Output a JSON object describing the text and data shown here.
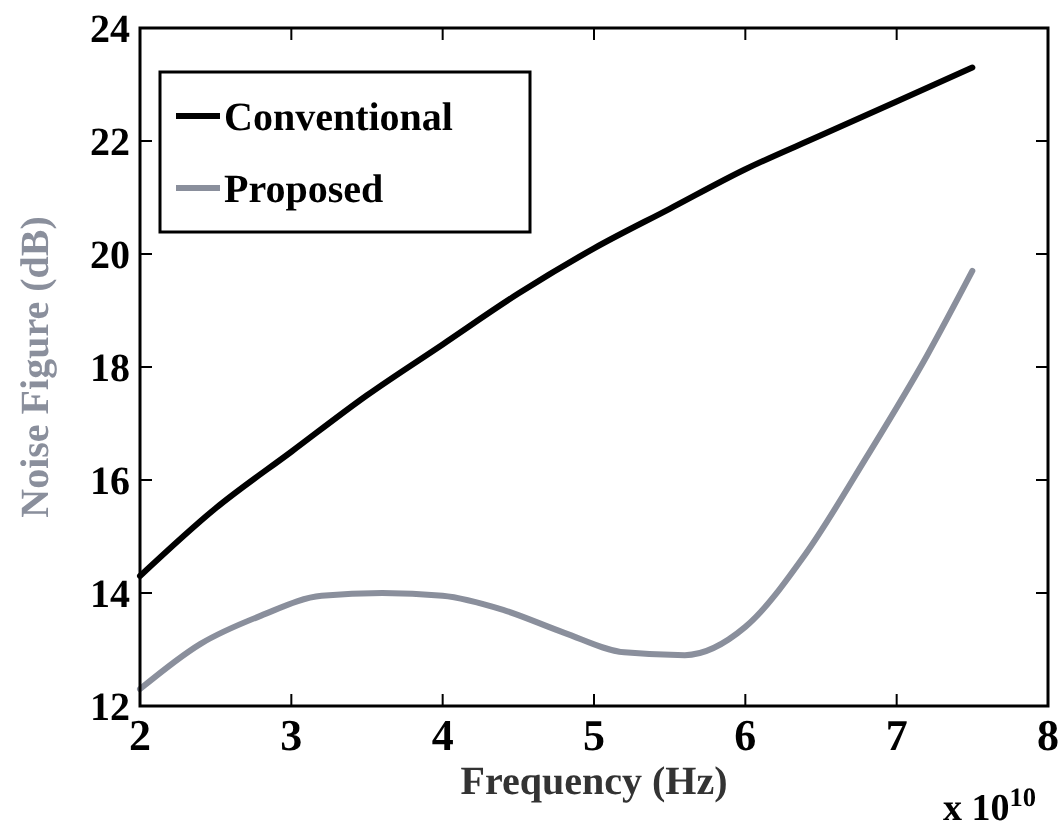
{
  "chart_data": {
    "type": "line",
    "xlabel": "Frequency (Hz)",
    "ylabel": "Noise Figure (dB)",
    "annotations": [
      "x 10$^{10}$"
    ],
    "xlim": [
      2,
      8
    ],
    "xticks": [
      2,
      3,
      4,
      5,
      6,
      7,
      8
    ],
    "ylim": [
      12,
      24
    ],
    "yticks": [
      12,
      14,
      16,
      18,
      20,
      22,
      24
    ],
    "grid": false,
    "legend": "top left",
    "marker": "none",
    "line_style": "solid",
    "series": [
      {
        "name": "Conventional",
        "color": "#000000",
        "x": [
          2,
          2.5,
          3,
          3.5,
          4,
          4.5,
          5,
          5.5,
          6,
          6.5,
          7,
          7.5
        ],
        "values": [
          14.3,
          15.5,
          16.5,
          17.5,
          18.4,
          19.3,
          20.1,
          20.8,
          21.5,
          22.1,
          22.7,
          23.3
        ]
      },
      {
        "name": "Proposed",
        "color": "#8a8f9c",
        "x": [
          2,
          2.4,
          2.8,
          3.2,
          3.6,
          4,
          4.4,
          4.8,
          5.2,
          5.6,
          6,
          6.4,
          6.8,
          7.2,
          7.5
        ],
        "values": [
          12.3,
          13.1,
          13.6,
          13.95,
          14.0,
          13.95,
          13.7,
          13.3,
          12.95,
          12.9,
          13.4,
          14.7,
          16.4,
          18.2,
          19.7
        ]
      }
    ]
  }
}
